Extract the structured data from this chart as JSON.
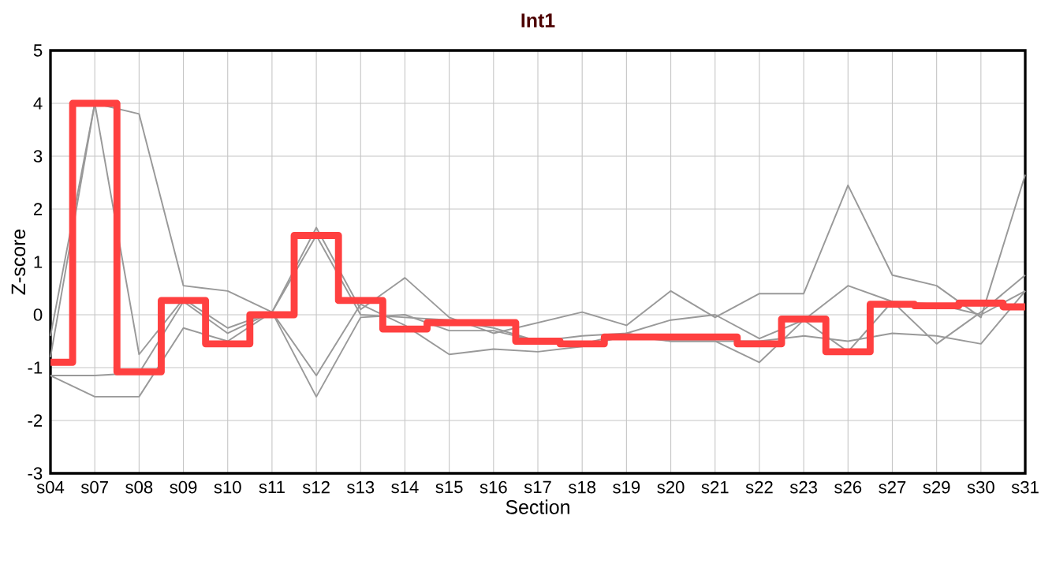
{
  "chart_data": {
    "type": "line",
    "title": "Int1",
    "xlabel": "Section",
    "ylabel": "Z-score",
    "categories": [
      "s04",
      "s07",
      "s08",
      "s09",
      "s10",
      "s11",
      "s12",
      "s13",
      "s14",
      "s15",
      "s16",
      "s17",
      "s18",
      "s19",
      "s20",
      "s21",
      "s22",
      "s23",
      "s26",
      "s27",
      "s29",
      "s30",
      "s31"
    ],
    "series": [
      {
        "color": "#999999",
        "values": [
          -0.4,
          4.0,
          3.8,
          0.55,
          0.45,
          0.05,
          1.65,
          0.1,
          0.7,
          -0.05,
          -0.35,
          -0.15,
          0.05,
          -0.2,
          0.45,
          -0.05,
          0.4,
          0.4,
          2.45,
          0.75,
          0.55,
          -0.05,
          2.65
        ]
      },
      {
        "color": "#999999",
        "values": [
          -0.8,
          4.0,
          -0.75,
          0.3,
          -0.25,
          0.05,
          1.5,
          0.0,
          -0.05,
          -0.1,
          -0.25,
          -0.5,
          -0.4,
          -0.35,
          -0.1,
          0.0,
          -0.45,
          -0.1,
          0.55,
          0.25,
          -0.55,
          0.05,
          0.75
        ]
      },
      {
        "color": "#999999",
        "values": [
          -1.15,
          -1.15,
          -1.1,
          0.25,
          -0.35,
          0.05,
          -1.15,
          0.2,
          -0.2,
          -0.75,
          -0.65,
          -0.7,
          -0.6,
          -0.4,
          -0.5,
          -0.5,
          -0.5,
          -0.4,
          -0.5,
          -0.35,
          -0.4,
          -0.55,
          0.45
        ]
      },
      {
        "color": "#999999",
        "values": [
          -1.15,
          -1.55,
          -1.55,
          -0.25,
          -0.5,
          0.05,
          -1.55,
          -0.05,
          0.0,
          -0.3,
          -0.3,
          -0.5,
          -0.55,
          -0.35,
          -0.5,
          -0.5,
          -0.9,
          -0.1,
          -0.7,
          0.25,
          0.2,
          0.0,
          0.45
        ]
      },
      {
        "color": "#ff4040",
        "type": "step",
        "values": [
          -0.9,
          4.0,
          -1.08,
          0.27,
          -0.55,
          0.0,
          1.5,
          0.27,
          -0.27,
          -0.15,
          -0.15,
          -0.5,
          -0.55,
          -0.42,
          -0.42,
          -0.42,
          -0.55,
          -0.08,
          -0.7,
          0.2,
          0.17,
          0.22,
          0.15
        ]
      }
    ],
    "ylim": [
      -3,
      5
    ],
    "yticks": [
      -3,
      -2,
      -1,
      0,
      1,
      2,
      3,
      4,
      5
    ],
    "grid": true,
    "marker": "none",
    "line_style": "solid"
  }
}
